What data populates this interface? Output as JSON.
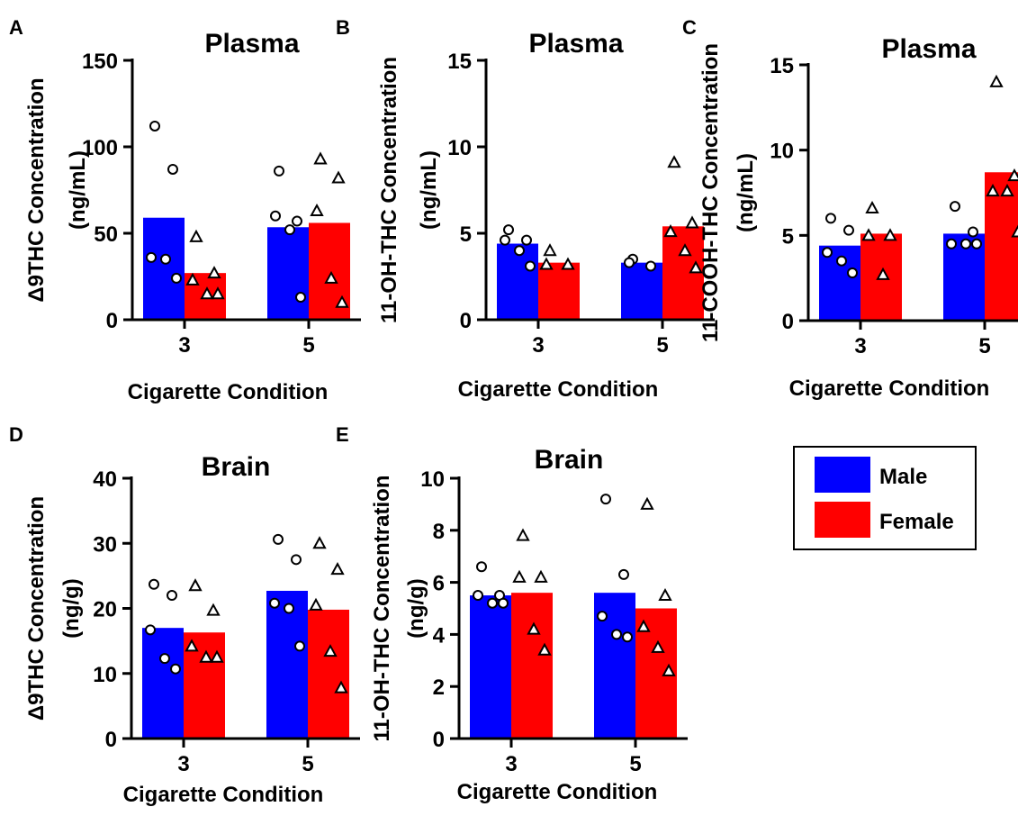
{
  "colors": {
    "male": "#0000ff",
    "female": "#ff0000",
    "axis": "#000000",
    "point_fill": "#ffffff"
  },
  "legend": {
    "items": [
      "Male",
      "Female"
    ]
  },
  "chart_data": [
    {
      "panel_letter": "A",
      "type": "bar",
      "title": "Plasma",
      "xlabel": "Cigarette Condition",
      "ylabel": [
        "Δ9THC Concentration",
        "(ng/mL)"
      ],
      "categories": [
        "3",
        "5"
      ],
      "ylim": [
        0,
        150
      ],
      "yticks": [
        0,
        50,
        100,
        150
      ],
      "series": [
        {
          "name": "Male",
          "marker": "circle",
          "values": [
            59,
            53.5
          ],
          "points": [
            [
              112,
              87,
              36,
              35,
              24
            ],
            [
              86,
              57,
              60,
              52,
              13
            ]
          ]
        },
        {
          "name": "Female",
          "marker": "triangle",
          "values": [
            27,
            56
          ],
          "points": [
            [
              48,
              27,
              23,
              15,
              15
            ],
            [
              93,
              82,
              63,
              24,
              10
            ]
          ]
        }
      ]
    },
    {
      "panel_letter": "B",
      "type": "bar",
      "title": "Plasma",
      "xlabel": "Cigarette Condition",
      "ylabel": [
        "11-OH-THC Concentration",
        "(ng/mL)"
      ],
      "categories": [
        "3",
        "5"
      ],
      "ylim": [
        0,
        15
      ],
      "yticks": [
        0,
        5,
        10,
        15
      ],
      "series": [
        {
          "name": "Male",
          "marker": "circle",
          "values": [
            4.4,
            3.3
          ],
          "points": [
            [
              5.2,
              4.6,
              4.6,
              4.0,
              3.1
            ],
            [
              3.5,
              3.1,
              3.3
            ]
          ]
        },
        {
          "name": "Female",
          "marker": "triangle",
          "values": [
            3.3,
            5.4
          ],
          "points": [
            [
              4.0,
              3.2,
              3.2
            ],
            [
              9.1,
              5.6,
              5.1,
              4.0,
              3.0
            ]
          ]
        }
      ]
    },
    {
      "panel_letter": "C",
      "type": "bar",
      "title": "Plasma",
      "xlabel": "Cigarette Condition",
      "ylabel": [
        "11-COOH-THC Concentration",
        "(ng/mL)"
      ],
      "categories": [
        "3",
        "5"
      ],
      "ylim": [
        0,
        15
      ],
      "yticks": [
        0,
        5,
        10,
        15
      ],
      "series": [
        {
          "name": "Male",
          "marker": "circle",
          "values": [
            4.4,
            5.1
          ],
          "points": [
            [
              6.0,
              5.3,
              4.0,
              3.5,
              2.8
            ],
            [
              6.7,
              5.2,
              4.5,
              4.5,
              4.5
            ]
          ]
        },
        {
          "name": "Female",
          "marker": "triangle",
          "values": [
            5.1,
            8.7
          ],
          "points": [
            [
              6.6,
              5.0,
              5.0,
              2.7
            ],
            [
              14.0,
              8.5,
              7.6,
              7.6,
              5.2
            ]
          ]
        }
      ]
    },
    {
      "panel_letter": "D",
      "type": "bar",
      "title": "Brain",
      "xlabel": "Cigarette Condition",
      "ylabel": [
        "Δ9THC Concentration",
        "(ng/g)"
      ],
      "categories": [
        "3",
        "5"
      ],
      "ylim": [
        0,
        40
      ],
      "yticks": [
        0,
        10,
        20,
        30,
        40
      ],
      "series": [
        {
          "name": "Male",
          "marker": "circle",
          "values": [
            17,
            22.7
          ],
          "points": [
            [
              23.7,
              22.0,
              16.7,
              12.3,
              10.7
            ],
            [
              30.6,
              27.5,
              20.8,
              20.0,
              14.2
            ]
          ]
        },
        {
          "name": "Female",
          "marker": "triangle",
          "values": [
            16.3,
            19.8
          ],
          "points": [
            [
              23.5,
              19.7,
              14.2,
              12.5,
              12.5
            ],
            [
              30.0,
              26.0,
              20.5,
              13.4,
              7.8
            ]
          ]
        }
      ]
    },
    {
      "panel_letter": "E",
      "type": "bar",
      "title": "Brain",
      "xlabel": "Cigarette Condition",
      "ylabel": [
        "11-OH-THC Concentration",
        "(ng/g)"
      ],
      "categories": [
        "3",
        "5"
      ],
      "ylim": [
        0,
        10
      ],
      "yticks": [
        0,
        2,
        4,
        6,
        8,
        10
      ],
      "series": [
        {
          "name": "Male",
          "marker": "circle",
          "values": [
            5.5,
            5.6
          ],
          "points": [
            [
              6.6,
              5.5,
              5.5,
              5.2,
              5.2
            ],
            [
              9.2,
              6.3,
              4.7,
              4.0,
              3.9
            ]
          ]
        },
        {
          "name": "Female",
          "marker": "triangle",
          "values": [
            5.6,
            5.0
          ],
          "points": [
            [
              7.8,
              6.2,
              6.2,
              4.2,
              3.4
            ],
            [
              9.0,
              5.5,
              4.3,
              3.5,
              2.6
            ]
          ]
        }
      ]
    }
  ]
}
